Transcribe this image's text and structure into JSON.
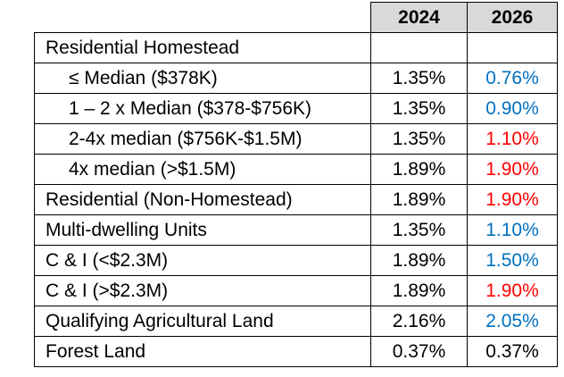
{
  "table": {
    "header": [
      "2024",
      "2026"
    ],
    "rows": [
      {
        "label": "Residential Homestead",
        "subrows": [
          {
            "label": "≤ Median ($378K)",
            "values": [
              "1.35%",
              "0.76%"
            ],
            "color": "#0070c0"
          },
          {
            "label": "1 – 2 x Median ($378-$756K)",
            "values": [
              "1.35%",
              "0.90%"
            ],
            "color": "#0070c0"
          },
          {
            "label": "2-4x median ($756K-$1.5M)",
            "values": [
              "1.35%",
              "1.10%"
            ],
            "color": "#ff0000"
          },
          {
            "label": "4x median (>$1.5M)",
            "values": [
              "1.89%",
              "1.90%"
            ],
            "color": "#ff0000"
          }
        ]
      },
      {
        "label": "Residential (Non-Homestead)",
        "values": [
          "1.89%",
          "1.90%"
        ],
        "color": "#ff0000"
      },
      {
        "label": "Multi-dwelling Units",
        "values": [
          "1.35%",
          "1.10%"
        ],
        "color": "#0070c0"
      },
      {
        "label": "C & I (<$2.3M)",
        "values": [
          "1.89%",
          "1.50%"
        ],
        "color": "#0070c0"
      },
      {
        "label": "C & I (>$2.3M)",
        "values": [
          "1.89%",
          "1.90%"
        ],
        "color": "#ff0000"
      },
      {
        "label": "Qualifying Agricultural Land",
        "values": [
          "2.16%",
          "2.05%"
        ],
        "color": "#0070c0"
      },
      {
        "label": "Forest Land",
        "values": [
          "0.37%",
          "0.37%"
        ],
        "color": "#000000"
      }
    ]
  }
}
